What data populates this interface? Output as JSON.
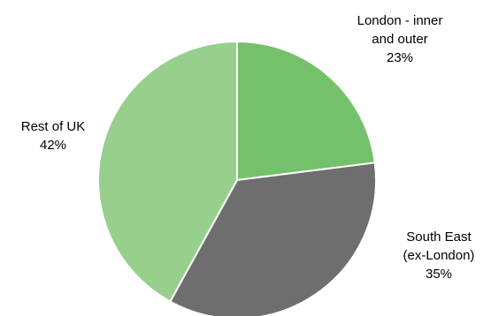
{
  "chart_data": {
    "type": "pie",
    "slices": [
      {
        "name": "London - inner and outer",
        "label_lines": [
          "London - inner",
          "and outer"
        ],
        "value": 23,
        "value_label": "23%",
        "color": "#75c16b"
      },
      {
        "name": "South East (ex-London)",
        "label_lines": [
          "South East",
          "(ex-London)"
        ],
        "value": 35,
        "value_label": "35%",
        "color": "#6e6e6e"
      },
      {
        "name": "Rest of UK",
        "label_lines": [
          "Rest of UK"
        ],
        "value": 42,
        "value_label": "42%",
        "color": "#97d08d"
      }
    ],
    "start_angle": "12 o'clock",
    "direction": "clockwise",
    "legend": "none"
  }
}
